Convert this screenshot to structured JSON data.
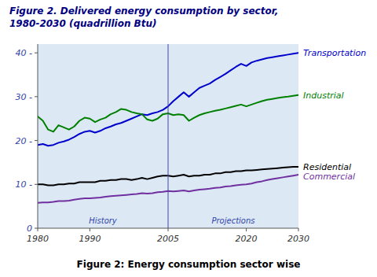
{
  "chart_data": {
    "type": "line",
    "title": "Figure 2. Delivered energy consumption by sector,",
    "subtitle": "1980-2030 (quadrillion Btu)",
    "annotations": [
      "History",
      "Projections",
      "Figure 2: Energy consumption sector wise"
    ],
    "x": [
      1980,
      1981,
      1982,
      1983,
      1984,
      1985,
      1986,
      1987,
      1988,
      1989,
      1990,
      1991,
      1992,
      1993,
      1994,
      1995,
      1996,
      1997,
      1998,
      1999,
      2000,
      2001,
      2002,
      2003,
      2004,
      2005,
      2006,
      2007,
      2008,
      2009,
      2010,
      2011,
      2012,
      2013,
      2014,
      2015,
      2016,
      2017,
      2018,
      2019,
      2020,
      2021,
      2022,
      2023,
      2024,
      2025,
      2026,
      2027,
      2028,
      2029,
      2030
    ],
    "series": [
      {
        "name": "Transportation",
        "color": "#0000cc",
        "values": [
          19.0,
          19.2,
          18.8,
          19.0,
          19.5,
          19.8,
          20.2,
          20.8,
          21.5,
          22.0,
          22.2,
          21.8,
          22.2,
          22.8,
          23.2,
          23.7,
          24.0,
          24.5,
          25.0,
          25.5,
          26.0,
          25.8,
          26.2,
          26.5,
          27.0,
          27.8,
          29.0,
          30.0,
          31.0,
          30.0,
          31.0,
          32.0,
          32.5,
          33.0,
          33.8,
          34.5,
          35.2,
          36.0,
          36.8,
          37.5,
          37.0,
          37.8,
          38.2,
          38.5,
          38.8,
          39.0,
          39.2,
          39.4,
          39.6,
          39.8,
          40.0
        ]
      },
      {
        "name": "Industrial",
        "color": "#008000",
        "values": [
          25.5,
          24.5,
          22.5,
          22.0,
          23.5,
          23.0,
          22.5,
          23.2,
          24.5,
          25.2,
          25.0,
          24.2,
          24.8,
          25.2,
          26.0,
          26.5,
          27.2,
          27.0,
          26.5,
          26.2,
          26.0,
          24.8,
          24.5,
          25.0,
          26.0,
          26.2,
          25.8,
          26.0,
          25.8,
          24.5,
          25.2,
          25.8,
          26.2,
          26.5,
          26.8,
          27.0,
          27.3,
          27.6,
          27.9,
          28.2,
          27.8,
          28.2,
          28.6,
          29.0,
          29.3,
          29.5,
          29.7,
          29.9,
          30.0,
          30.2,
          30.4
        ]
      },
      {
        "name": "Residential",
        "color": "#000000",
        "values": [
          10.0,
          10.0,
          9.8,
          9.8,
          10.0,
          10.0,
          10.2,
          10.2,
          10.5,
          10.5,
          10.5,
          10.5,
          10.8,
          10.8,
          11.0,
          11.0,
          11.2,
          11.2,
          11.0,
          11.2,
          11.5,
          11.2,
          11.5,
          11.8,
          12.0,
          12.0,
          11.8,
          12.0,
          12.2,
          11.8,
          12.0,
          12.0,
          12.2,
          12.2,
          12.5,
          12.5,
          12.8,
          12.8,
          13.0,
          13.0,
          13.2,
          13.2,
          13.3,
          13.4,
          13.5,
          13.6,
          13.7,
          13.8,
          13.9,
          14.0,
          14.0
        ]
      },
      {
        "name": "Commercial",
        "color": "#7030a0",
        "values": [
          5.8,
          5.9,
          5.9,
          6.0,
          6.2,
          6.2,
          6.3,
          6.5,
          6.7,
          6.8,
          6.8,
          6.9,
          7.0,
          7.2,
          7.3,
          7.4,
          7.5,
          7.6,
          7.7,
          7.8,
          8.0,
          7.9,
          8.0,
          8.2,
          8.3,
          8.5,
          8.4,
          8.5,
          8.6,
          8.4,
          8.6,
          8.8,
          8.9,
          9.0,
          9.2,
          9.3,
          9.5,
          9.6,
          9.8,
          9.9,
          10.0,
          10.2,
          10.5,
          10.7,
          11.0,
          11.2,
          11.4,
          11.6,
          11.8,
          12.0,
          12.2
        ]
      }
    ],
    "vlines": [
      2005
    ],
    "xlim": [
      1980,
      2030
    ],
    "ylim": [
      0,
      42
    ],
    "xticks": [
      1980,
      1990,
      2005,
      2020,
      2030
    ],
    "yticks": [
      0,
      {
        "value": 10,
        "label": "10 -"
      },
      {
        "value": 20,
        "label": "20 -"
      },
      {
        "value": 30,
        "label": "30 -"
      },
      {
        "value": 40,
        "label": "40 -"
      }
    ],
    "grid": false
  }
}
